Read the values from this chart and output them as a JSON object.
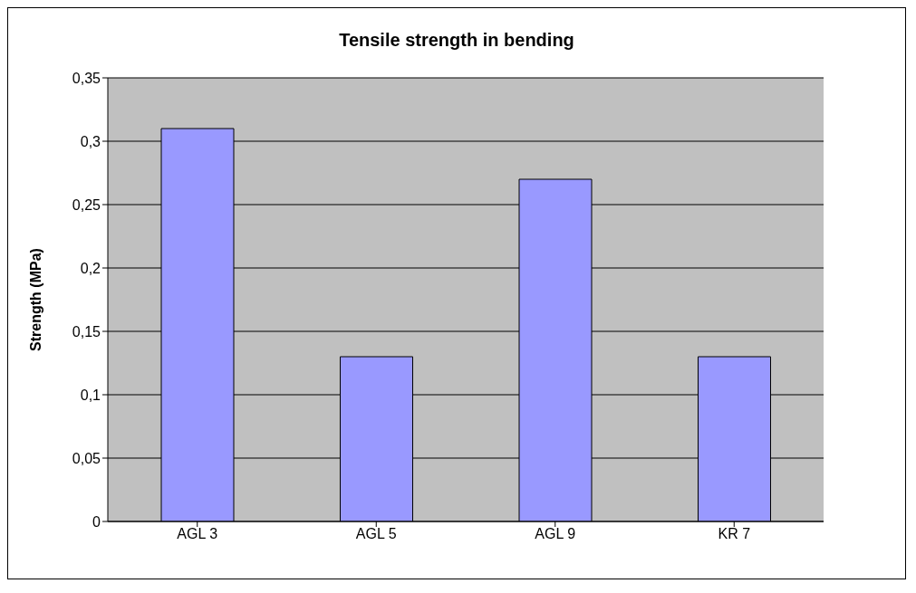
{
  "chart_data": {
    "type": "bar",
    "title": "Tensile strength in bending",
    "ylabel": "Strength (MPa)",
    "categories": [
      "AGL 3",
      "AGL 5",
      "AGL 9",
      "KR 7"
    ],
    "values": [
      0.31,
      0.13,
      0.27,
      0.13
    ],
    "color": "#9999ff",
    "ylim": [
      0,
      0.35
    ],
    "yticks": [
      {
        "value": 0,
        "label": "0"
      },
      {
        "value": 0.05,
        "label": "0,05"
      },
      {
        "value": 0.1,
        "label": "0,1"
      },
      {
        "value": 0.15,
        "label": "0,15"
      },
      {
        "value": 0.2,
        "label": "0,2"
      },
      {
        "value": 0.25,
        "label": "0,25"
      },
      {
        "value": 0.3,
        "label": "0,3"
      },
      {
        "value": 0.35,
        "label": "0,35"
      }
    ],
    "grid": "y"
  }
}
